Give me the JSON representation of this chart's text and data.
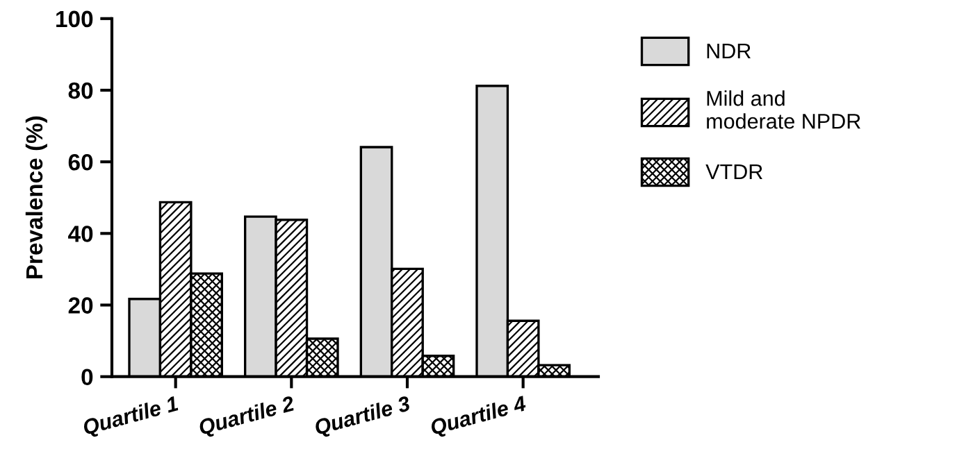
{
  "chart_data": {
    "type": "bar",
    "ylabel": "Prevalence (%)",
    "categories": [
      "Quartile 1",
      "Quartile 2",
      "Quartile 3",
      "Quartile 4"
    ],
    "series": [
      {
        "name": "NDR",
        "color": "#d9d9d9",
        "values": [
          21.7,
          44.7,
          64.1,
          81.2
        ]
      },
      {
        "name": "Mild and\nmoderate NPDR",
        "color": "#000000",
        "values": [
          48.7,
          43.8,
          30.1,
          15.6
        ]
      },
      {
        "name": "VTDR",
        "color": "#000000",
        "values": [
          28.8,
          10.6,
          5.8,
          3.2
        ]
      }
    ],
    "ylim": [
      0,
      100
    ],
    "yticks": [
      0,
      20,
      40,
      60,
      80,
      100
    ],
    "grid": false,
    "legend": "right"
  }
}
